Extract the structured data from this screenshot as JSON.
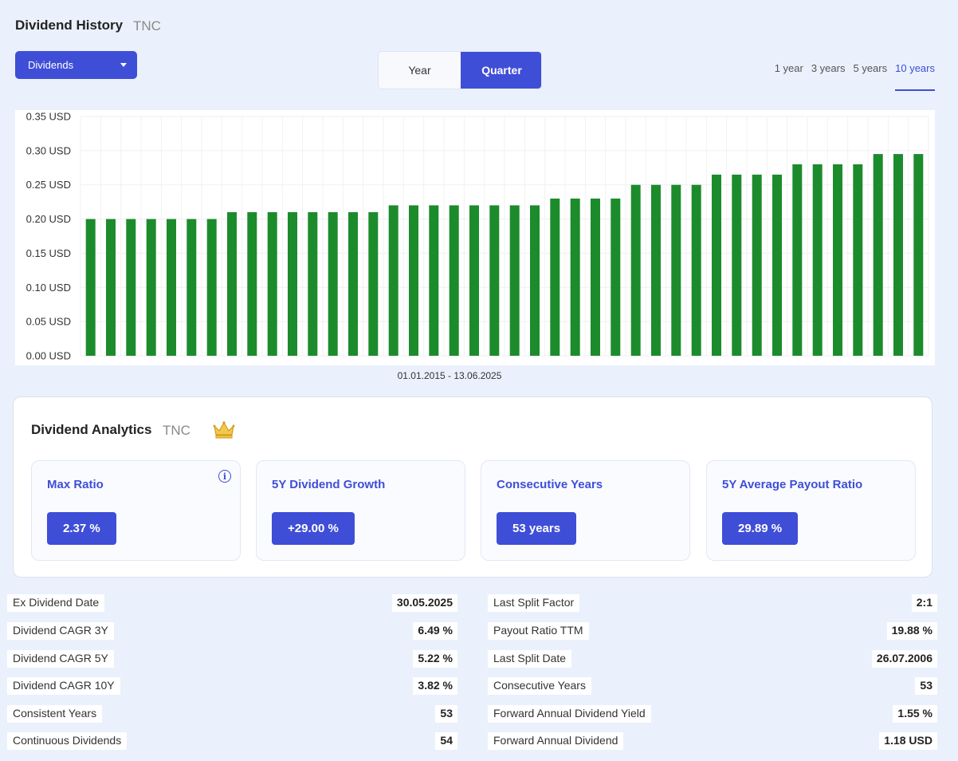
{
  "history": {
    "title": "Dividend History",
    "ticker": "TNC",
    "dropdown_value": "Dividends",
    "segments": [
      "Year",
      "Quarter"
    ],
    "active_segment": "Quarter",
    "ranges": [
      "1 year",
      "3 years",
      "5 years",
      "10 years"
    ],
    "active_range": "10 years",
    "date_range": "01.01.2015 - 13.06.2025"
  },
  "colors": {
    "accent": "#3f4ed7",
    "bar": "#1c8b2c",
    "background": "#eaf1fc"
  },
  "chart_data": {
    "type": "bar",
    "title": "",
    "xlabel": "",
    "ylabel": "",
    "ylim": [
      0,
      0.35
    ],
    "y_ticks": [
      "0.00 USD",
      "0.05 USD",
      "0.10 USD",
      "0.15 USD",
      "0.20 USD",
      "0.25 USD",
      "0.30 USD",
      "0.35 USD"
    ],
    "grid": true,
    "values": [
      0.2,
      0.2,
      0.2,
      0.2,
      0.2,
      0.2,
      0.2,
      0.21,
      0.21,
      0.21,
      0.21,
      0.21,
      0.21,
      0.21,
      0.21,
      0.22,
      0.22,
      0.22,
      0.22,
      0.22,
      0.22,
      0.22,
      0.22,
      0.23,
      0.23,
      0.23,
      0.23,
      0.25,
      0.25,
      0.25,
      0.25,
      0.265,
      0.265,
      0.265,
      0.265,
      0.28,
      0.28,
      0.28,
      0.28,
      0.295,
      0.295,
      0.295
    ]
  },
  "analytics": {
    "title": "Dividend Analytics",
    "ticker": "TNC",
    "icon": "crown-icon",
    "cards": [
      {
        "label": "Max Ratio",
        "value": "2.37 %"
      },
      {
        "label": "5Y Dividend Growth",
        "value": "+29.00 %"
      },
      {
        "label": "Consecutive Years",
        "value": "53 years"
      },
      {
        "label": "5Y Average Payout Ratio",
        "value": "29.89 %"
      }
    ]
  },
  "stats_left": [
    {
      "label": "Ex Dividend Date",
      "value": "30.05.2025"
    },
    {
      "label": "Dividend CAGR 3Y",
      "value": "6.49 %"
    },
    {
      "label": "Dividend CAGR 5Y",
      "value": "5.22 %"
    },
    {
      "label": "Dividend CAGR 10Y",
      "value": "3.82 %"
    },
    {
      "label": "Consistent Years",
      "value": "53"
    },
    {
      "label": "Continuous Dividends",
      "value": "54"
    }
  ],
  "stats_right": [
    {
      "label": "Last Split Factor",
      "value": "2:1"
    },
    {
      "label": "Payout Ratio TTM",
      "value": "19.88 %"
    },
    {
      "label": "Last Split Date",
      "value": "26.07.2006"
    },
    {
      "label": "Consecutive Years",
      "value": "53"
    },
    {
      "label": "Forward Annual Dividend Yield",
      "value": "1.55 %"
    },
    {
      "label": "Forward Annual Dividend",
      "value": "1.18 USD"
    }
  ]
}
